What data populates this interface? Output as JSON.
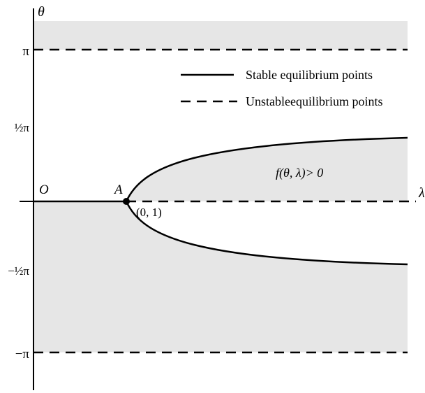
{
  "axes": {
    "y_axis_label": "θ",
    "x_axis_label": "λ",
    "origin_label": "O"
  },
  "y_ticks": [
    {
      "key": "pi",
      "label": "π",
      "value": 3.1416
    },
    {
      "key": "half_pi",
      "label": "½π",
      "value": 1.5708
    },
    {
      "key": "neg_half_pi",
      "label": "−½π",
      "value": -1.5708
    },
    {
      "key": "neg_pi",
      "label": "−π",
      "value": -3.1416
    }
  ],
  "point_a": {
    "label": "A",
    "coord_label": "(0, 1)"
  },
  "legend": {
    "items": [
      {
        "label": "Stable equilibrium points",
        "line_style": "solid"
      },
      {
        "label": "Unstableequilibrium points",
        "line_style": "dashed"
      }
    ]
  },
  "region_label": "f(θ, λ)> 0",
  "colors": {
    "shade": "#e6e6e6",
    "line": "#000000"
  }
}
